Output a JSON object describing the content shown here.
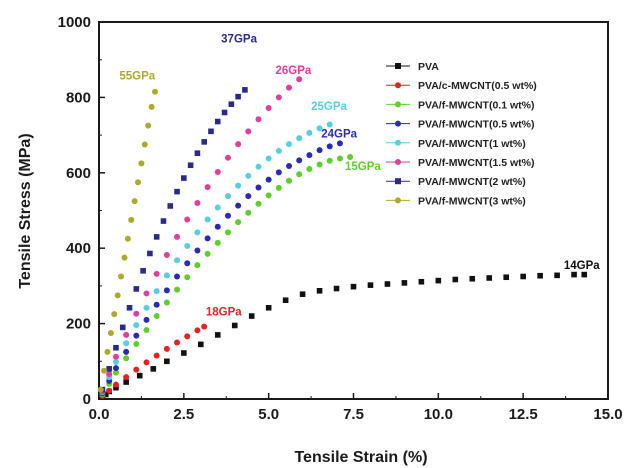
{
  "chart_data": {
    "type": "scatter",
    "title": "",
    "xlabel": "Tensile Strain (%)",
    "ylabel": "Tensile Stress (MPa)",
    "xlim": [
      0,
      15
    ],
    "ylim": [
      0,
      1000
    ],
    "x_ticks": [
      "0.0",
      "2.5",
      "5.0",
      "7.5",
      "10.0",
      "12.5",
      "15.0"
    ],
    "y_ticks": [
      "0",
      "200",
      "400",
      "600",
      "800",
      "1000"
    ],
    "grid": false,
    "legend_position": "top-right",
    "series": [
      {
        "name": "PVA",
        "color": "#111111",
        "marker": "square",
        "points": [
          [
            0.1,
            5
          ],
          [
            0.2,
            12
          ],
          [
            0.3,
            20
          ],
          [
            0.5,
            30
          ],
          [
            0.8,
            45
          ],
          [
            1.2,
            62
          ],
          [
            1.6,
            80
          ],
          [
            2.0,
            100
          ],
          [
            2.5,
            122
          ],
          [
            3.0,
            145
          ],
          [
            3.5,
            170
          ],
          [
            4.0,
            195
          ],
          [
            4.5,
            220
          ],
          [
            5.0,
            242
          ],
          [
            5.5,
            262
          ],
          [
            6.0,
            278
          ],
          [
            6.5,
            287
          ],
          [
            7.0,
            293
          ],
          [
            7.5,
            298
          ],
          [
            8.0,
            302
          ],
          [
            8.5,
            305
          ],
          [
            9.0,
            308
          ],
          [
            9.5,
            311
          ],
          [
            10.0,
            314
          ],
          [
            10.5,
            317
          ],
          [
            11.0,
            319
          ],
          [
            11.5,
            321
          ],
          [
            12.0,
            323
          ],
          [
            12.5,
            325
          ],
          [
            13.0,
            327
          ],
          [
            13.5,
            328
          ],
          [
            14.0,
            330
          ],
          [
            14.3,
            330
          ]
        ]
      },
      {
        "name": "PVA/c-MWCNT(0.5 wt%)",
        "color": "#e32222",
        "marker": "circle",
        "points": [
          [
            0.1,
            8
          ],
          [
            0.3,
            22
          ],
          [
            0.5,
            38
          ],
          [
            0.8,
            58
          ],
          [
            1.1,
            78
          ],
          [
            1.4,
            97
          ],
          [
            1.7,
            115
          ],
          [
            2.0,
            133
          ],
          [
            2.3,
            150
          ],
          [
            2.6,
            166
          ],
          [
            2.9,
            182
          ],
          [
            3.1,
            192
          ]
        ]
      },
      {
        "name": "PVA/f-MWCNT(0.1 wt%)",
        "color": "#5cd02a",
        "marker": "circle",
        "points": [
          [
            0.1,
            12
          ],
          [
            0.3,
            40
          ],
          [
            0.5,
            70
          ],
          [
            0.8,
            108
          ],
          [
            1.1,
            146
          ],
          [
            1.4,
            183
          ],
          [
            1.7,
            220
          ],
          [
            2.0,
            256
          ],
          [
            2.3,
            290
          ],
          [
            2.6,
            323
          ],
          [
            2.9,
            355
          ],
          [
            3.2,
            385
          ],
          [
            3.5,
            414
          ],
          [
            3.8,
            442
          ],
          [
            4.1,
            469
          ],
          [
            4.4,
            494
          ],
          [
            4.7,
            518
          ],
          [
            5.0,
            540
          ],
          [
            5.3,
            560
          ],
          [
            5.6,
            579
          ],
          [
            5.9,
            596
          ],
          [
            6.2,
            610
          ],
          [
            6.5,
            622
          ],
          [
            6.8,
            632
          ],
          [
            7.1,
            638
          ],
          [
            7.4,
            642
          ]
        ]
      },
      {
        "name": "PVA/f-MWCNT(0.5 wt%)",
        "color": "#2a2ab8",
        "marker": "circle",
        "points": [
          [
            0.1,
            15
          ],
          [
            0.3,
            48
          ],
          [
            0.5,
            82
          ],
          [
            0.8,
            125
          ],
          [
            1.1,
            168
          ],
          [
            1.4,
            210
          ],
          [
            1.7,
            250
          ],
          [
            2.0,
            288
          ],
          [
            2.3,
            325
          ],
          [
            2.6,
            360
          ],
          [
            2.9,
            394
          ],
          [
            3.2,
            426
          ],
          [
            3.5,
            457
          ],
          [
            3.8,
            486
          ],
          [
            4.1,
            513
          ],
          [
            4.4,
            538
          ],
          [
            4.7,
            561
          ],
          [
            5.0,
            582
          ],
          [
            5.3,
            601
          ],
          [
            5.6,
            618
          ],
          [
            5.9,
            633
          ],
          [
            6.2,
            647
          ],
          [
            6.5,
            660
          ],
          [
            6.8,
            670
          ],
          [
            7.1,
            678
          ]
        ]
      },
      {
        "name": "PVA/f-MWCNT(1 wt%)",
        "color": "#55cfe0",
        "marker": "circle",
        "points": [
          [
            0.1,
            18
          ],
          [
            0.3,
            58
          ],
          [
            0.5,
            98
          ],
          [
            0.8,
            148
          ],
          [
            1.1,
            196
          ],
          [
            1.4,
            242
          ],
          [
            1.7,
            286
          ],
          [
            2.0,
            328
          ],
          [
            2.3,
            368
          ],
          [
            2.6,
            406
          ],
          [
            2.9,
            442
          ],
          [
            3.2,
            476
          ],
          [
            3.5,
            508
          ],
          [
            3.8,
            538
          ],
          [
            4.1,
            566
          ],
          [
            4.4,
            592
          ],
          [
            4.7,
            616
          ],
          [
            5.0,
            638
          ],
          [
            5.3,
            658
          ],
          [
            5.6,
            676
          ],
          [
            5.9,
            692
          ],
          [
            6.2,
            706
          ],
          [
            6.5,
            718
          ],
          [
            6.8,
            728
          ]
        ]
      },
      {
        "name": "PVA/f-MWCNT(1.5 wt%)",
        "color": "#e03e9a",
        "marker": "circle",
        "points": [
          [
            0.1,
            20
          ],
          [
            0.3,
            66
          ],
          [
            0.5,
            112
          ],
          [
            0.8,
            170
          ],
          [
            1.1,
            226
          ],
          [
            1.4,
            280
          ],
          [
            1.7,
            332
          ],
          [
            2.0,
            382
          ],
          [
            2.3,
            430
          ],
          [
            2.6,
            476
          ],
          [
            2.9,
            520
          ],
          [
            3.2,
            562
          ],
          [
            3.5,
            602
          ],
          [
            3.8,
            640
          ],
          [
            4.1,
            676
          ],
          [
            4.4,
            710
          ],
          [
            4.7,
            742
          ],
          [
            5.0,
            772
          ],
          [
            5.3,
            800
          ],
          [
            5.6,
            826
          ],
          [
            5.9,
            848
          ]
        ]
      },
      {
        "name": "PVA/f-MWCNT(2 wt%)",
        "color": "#2a2a8c",
        "marker": "square",
        "points": [
          [
            0.1,
            25
          ],
          [
            0.3,
            80
          ],
          [
            0.5,
            136
          ],
          [
            0.7,
            190
          ],
          [
            0.9,
            242
          ],
          [
            1.1,
            292
          ],
          [
            1.3,
            340
          ],
          [
            1.5,
            386
          ],
          [
            1.7,
            430
          ],
          [
            1.9,
            472
          ],
          [
            2.1,
            512
          ],
          [
            2.3,
            550
          ],
          [
            2.5,
            586
          ],
          [
            2.7,
            620
          ],
          [
            2.9,
            652
          ],
          [
            3.1,
            682
          ],
          [
            3.3,
            710
          ],
          [
            3.5,
            736
          ],
          [
            3.7,
            760
          ],
          [
            3.9,
            782
          ],
          [
            4.1,
            802
          ],
          [
            4.3,
            820
          ]
        ]
      },
      {
        "name": "PVA/f-MWCNT(3 wt%)",
        "color": "#b0a82a",
        "marker": "circle",
        "points": [
          [
            0.05,
            25
          ],
          [
            0.15,
            75
          ],
          [
            0.25,
            125
          ],
          [
            0.35,
            175
          ],
          [
            0.45,
            225
          ],
          [
            0.55,
            275
          ],
          [
            0.65,
            325
          ],
          [
            0.75,
            375
          ],
          [
            0.85,
            425
          ],
          [
            0.95,
            475
          ],
          [
            1.05,
            525
          ],
          [
            1.15,
            575
          ],
          [
            1.25,
            625
          ],
          [
            1.35,
            675
          ],
          [
            1.45,
            725
          ],
          [
            1.55,
            775
          ],
          [
            1.65,
            815
          ]
        ]
      }
    ],
    "annotations": [
      {
        "text": "14GPa",
        "x": 13.7,
        "y": 345,
        "color": "#111111"
      },
      {
        "text": "18GPa",
        "x": 3.15,
        "y": 222,
        "color": "#e32222"
      },
      {
        "text": "15GPa",
        "x": 7.25,
        "y": 607,
        "color": "#5cd02a"
      },
      {
        "text": "24GPa",
        "x": 6.55,
        "y": 694,
        "color": "#2a2ab8"
      },
      {
        "text": "25GPa",
        "x": 6.25,
        "y": 766,
        "color": "#55cfe0"
      },
      {
        "text": "26GPa",
        "x": 5.2,
        "y": 862,
        "color": "#e03e9a"
      },
      {
        "text": "37GPa",
        "x": 3.6,
        "y": 945,
        "color": "#2a2a8c"
      },
      {
        "text": "55GPa",
        "x": 0.6,
        "y": 848,
        "color": "#b0a82a"
      }
    ]
  }
}
